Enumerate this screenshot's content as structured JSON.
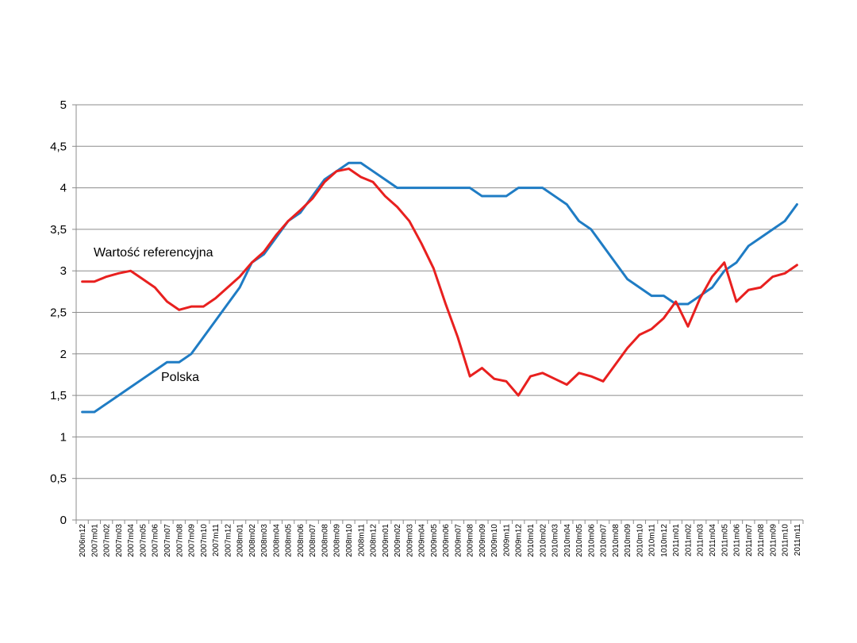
{
  "chart_data": {
    "type": "line",
    "title": "",
    "xlabel": "",
    "ylabel": "",
    "ylim": [
      0,
      5
    ],
    "yticks": [
      0,
      0.5,
      1,
      1.5,
      2,
      2.5,
      3,
      3.5,
      4,
      4.5,
      5
    ],
    "ytick_labels": [
      "0",
      "0,5",
      "1",
      "1,5",
      "2",
      "2,5",
      "3",
      "3,5",
      "4",
      "4,5",
      "5"
    ],
    "grid": true,
    "categories": [
      "2006m12",
      "2007m01",
      "2007m02",
      "2007m03",
      "2007m04",
      "2007m05",
      "2007m06",
      "2007m07",
      "2007m08",
      "2007m09",
      "2007m10",
      "2007m11",
      "2007m12",
      "2008m01",
      "2008m02",
      "2008m03",
      "2008m04",
      "2008m05",
      "2008m06",
      "2008m07",
      "2008m08",
      "2008m09",
      "2008m10",
      "2008m11",
      "2008m12",
      "2009m01",
      "2009m02",
      "2009m03",
      "2009m04",
      "2009m05",
      "2009m06",
      "2009m07",
      "2009m08",
      "2009m09",
      "2009m10",
      "2009m11",
      "2009m12",
      "2010m01",
      "2010m02",
      "2010m03",
      "2010m04",
      "2010m05",
      "2010m06",
      "2010m07",
      "2010m08",
      "2010m09",
      "2010m10",
      "2010m11",
      "1010m12",
      "2011m01",
      "2011m02",
      "2011m03",
      "2011m04",
      "2011m05",
      "2011m06",
      "2011m07",
      "2011m08",
      "2011m09",
      "2011m10",
      "2011m11"
    ],
    "series": [
      {
        "name": "Polska",
        "color": "#1f7cc4",
        "values": [
          1.3,
          1.3,
          1.4,
          1.5,
          1.6,
          1.7,
          1.8,
          1.9,
          1.9,
          2.0,
          2.2,
          2.4,
          2.6,
          2.8,
          3.1,
          3.2,
          3.4,
          3.6,
          3.7,
          3.9,
          4.1,
          4.2,
          4.3,
          4.3,
          4.2,
          4.1,
          4.0,
          4.0,
          4.0,
          4.0,
          4.0,
          4.0,
          4.0,
          3.9,
          3.9,
          3.9,
          4.0,
          4.0,
          4.0,
          3.9,
          3.8,
          3.6,
          3.5,
          3.3,
          3.1,
          2.9,
          2.8,
          2.7,
          2.7,
          2.6,
          2.6,
          2.7,
          2.8,
          3.0,
          3.1,
          3.3,
          3.4,
          3.5,
          3.6,
          3.8
        ]
      },
      {
        "name": "Wartość referencyjna",
        "color": "#e8201f",
        "values": [
          2.87,
          2.87,
          2.93,
          2.97,
          3.0,
          2.9,
          2.8,
          2.63,
          2.53,
          2.57,
          2.57,
          2.67,
          2.8,
          2.93,
          3.1,
          3.23,
          3.43,
          3.6,
          3.73,
          3.87,
          4.07,
          4.2,
          4.23,
          4.13,
          4.07,
          3.9,
          3.77,
          3.6,
          3.33,
          3.03,
          2.6,
          2.2,
          1.73,
          1.83,
          1.7,
          1.67,
          1.5,
          1.73,
          1.77,
          1.7,
          1.63,
          1.77,
          1.73,
          1.67,
          1.87,
          2.07,
          2.23,
          2.3,
          2.43,
          2.63,
          2.33,
          2.67,
          2.93,
          3.1,
          2.63,
          2.77,
          2.8,
          2.93,
          2.97,
          3.07
        ]
      }
    ],
    "annotations": [
      {
        "text": "Wartość referencyjna",
        "series": "Wartość referencyjna"
      },
      {
        "text": "Polska",
        "series": "Polska"
      }
    ]
  }
}
